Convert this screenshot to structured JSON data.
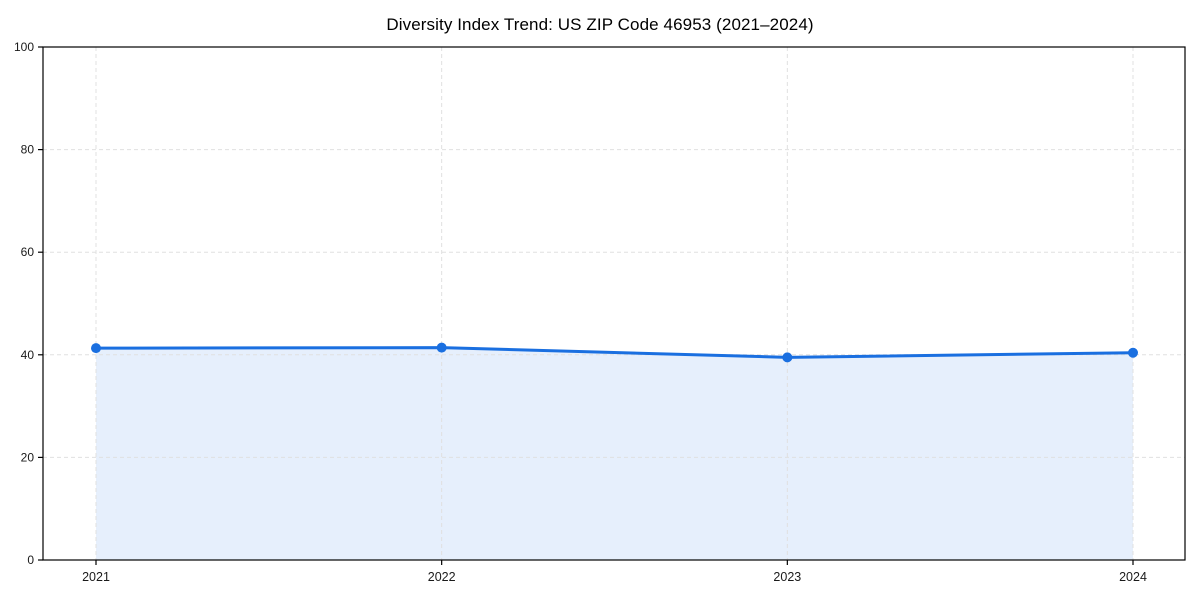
{
  "chart_data": {
    "type": "area",
    "title": "Diversity Index Trend: US ZIP Code 46953 (2021–2024)",
    "x": [
      "2021",
      "2022",
      "2023",
      "2024"
    ],
    "values": [
      41.3,
      41.4,
      39.5,
      40.4
    ],
    "series_name": "Diversity Index",
    "xlabel": "",
    "ylabel": "",
    "ylim": [
      0,
      100
    ],
    "yticks": [
      0,
      20,
      40,
      60,
      80,
      100
    ],
    "grid": "dashed-both-axes",
    "legend": "none",
    "line_color": "#1a6fe0",
    "marker_color": "#1a6fe0",
    "fill_color": "#1a6fe0",
    "fill_opacity": 0.11,
    "grid_color": "#e0e0e0",
    "spine_color": "#000000",
    "tick_label_color": "#1a1a1a",
    "background_color": "#ffffff"
  }
}
